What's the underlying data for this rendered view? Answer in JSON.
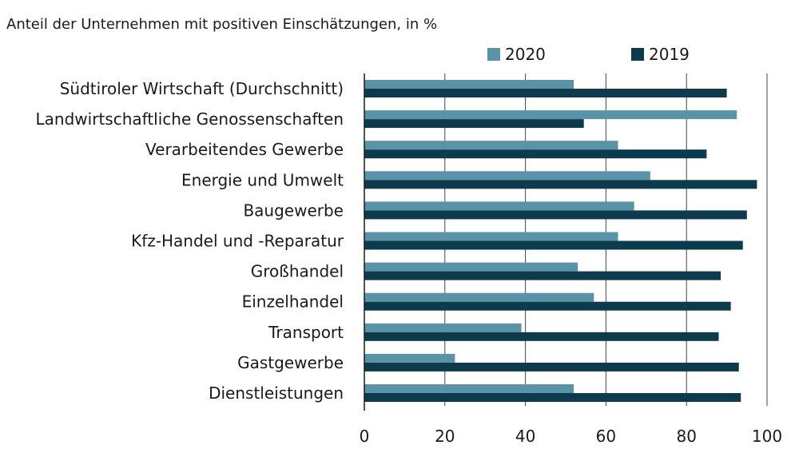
{
  "chart_data": {
    "type": "bar",
    "orientation": "horizontal",
    "subtitle": "Anteil der Unternehmen mit positiven Einschätzungen, in %",
    "categories": [
      "Südtiroler Wirtschaft (Durchschnitt)",
      "Landwirtschaftliche Genossenschaften",
      "Verarbeitendes Gewerbe",
      "Energie und Umwelt",
      "Baugewerbe",
      "Kfz-Handel und -Reparatur",
      "Großhandel",
      "Einzelhandel",
      "Transport",
      "Gastgewerbe",
      "Dienstleistungen"
    ],
    "series": [
      {
        "name": "2020",
        "color": "#5a93a8",
        "values": [
          52,
          92.5,
          63,
          71,
          67,
          63,
          53,
          57,
          39,
          22.5,
          52
        ]
      },
      {
        "name": "2019",
        "color": "#0d3a4c",
        "values": [
          90,
          54.5,
          85,
          97.5,
          95,
          94,
          88.5,
          91,
          88,
          93,
          93.5
        ]
      }
    ],
    "xlim": [
      0,
      100
    ],
    "xticks": [
      "0",
      "20",
      "40",
      "60",
      "80",
      "100"
    ],
    "grid": "vertical",
    "legend": "top"
  }
}
